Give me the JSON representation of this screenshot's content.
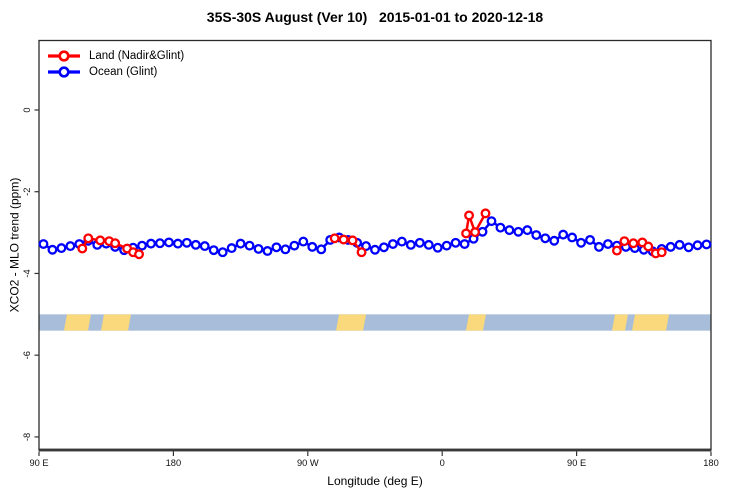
{
  "figure": {
    "title": "35S-30S August (Ver 10)   2015-01-01 to 2020-12-18"
  },
  "legend": {
    "items": [
      {
        "label": "Land (Nadir&Glint)",
        "color": "#ff0000"
      },
      {
        "label": "Ocean (Glint)",
        "color": "#0000ff"
      }
    ]
  },
  "axes": {
    "x": {
      "label": "Longitude (deg E)",
      "ticks": [
        {
          "value": 90,
          "label": "90 E"
        },
        {
          "value": 180,
          "label": "180"
        },
        {
          "value": 270,
          "label": "90 W"
        },
        {
          "value": 360,
          "label": "0"
        },
        {
          "value": 450,
          "label": "90 E"
        },
        {
          "value": 540,
          "label": "180"
        }
      ]
    },
    "y": {
      "label": "XCO2 - MLO trend (ppm)",
      "ticks": [
        {
          "value": 0,
          "label": "0"
        },
        {
          "value": -2,
          "label": "-2"
        },
        {
          "value": -4,
          "label": "-4"
        },
        {
          "value": -6,
          "label": "-6"
        },
        {
          "value": -8,
          "label": "-8"
        }
      ]
    }
  },
  "chart_data": {
    "type": "line",
    "title": "35S-30S August (Ver 10)   2015-01-01 to 2020-12-18",
    "xlabel": "Longitude (deg E)",
    "ylabel": "XCO2 - MLO trend (ppm)",
    "xlim": [
      90,
      540
    ],
    "ylim": [
      -8.32,
      1.7
    ],
    "marker": "open-circle",
    "series": [
      {
        "name": "Ocean (Glint)",
        "color": "#0000ff",
        "x": [
          93,
          99,
          105,
          111,
          117,
          123,
          129,
          135,
          141,
          147,
          153,
          159,
          165,
          171,
          177,
          183,
          189,
          195,
          201,
          207,
          213,
          219,
          225,
          231,
          237,
          243,
          249,
          255,
          261,
          267,
          273,
          279,
          285,
          291,
          297,
          303,
          309,
          315,
          321,
          327,
          333,
          339,
          345,
          351,
          357,
          363,
          369,
          375,
          381,
          387,
          393,
          399,
          405,
          411,
          417,
          423,
          429,
          435,
          441,
          447,
          453,
          459,
          465,
          471,
          477,
          483,
          489,
          495,
          501,
          507,
          513,
          519,
          525,
          531,
          537
        ],
        "y": [
          -3.28,
          -3.42,
          -3.38,
          -3.33,
          -3.28,
          -3.2,
          -3.3,
          -3.27,
          -3.35,
          -3.43,
          -3.37,
          -3.32,
          -3.27,
          -3.26,
          -3.24,
          -3.27,
          -3.25,
          -3.3,
          -3.33,
          -3.43,
          -3.48,
          -3.38,
          -3.27,
          -3.32,
          -3.4,
          -3.45,
          -3.36,
          -3.41,
          -3.32,
          -3.22,
          -3.35,
          -3.41,
          -3.18,
          -3.12,
          -3.18,
          -3.25,
          -3.33,
          -3.42,
          -3.36,
          -3.28,
          -3.22,
          -3.3,
          -3.25,
          -3.3,
          -3.37,
          -3.32,
          -3.25,
          -3.28,
          -3.15,
          -2.98,
          -2.72,
          -2.88,
          -2.94,
          -2.98,
          -2.94,
          -3.06,
          -3.14,
          -3.2,
          -3.05,
          -3.12,
          -3.25,
          -3.18,
          -3.35,
          -3.28,
          -3.32,
          -3.35,
          -3.38,
          -3.42,
          -3.46,
          -3.4,
          -3.35,
          -3.3,
          -3.36,
          -3.31,
          -3.29
        ]
      },
      {
        "name": "Land (Nadir&Glint)",
        "color": "#ff0000",
        "segments": [
          [
            [
              119,
              -3.39
            ],
            [
              123,
              -3.14
            ],
            [
              131,
              -3.19
            ],
            [
              137,
              -3.21
            ],
            [
              141,
              -3.26
            ],
            [
              149,
              -3.39
            ],
            [
              153,
              -3.48
            ],
            [
              157,
              -3.53
            ]
          ],
          [
            [
              288,
              -3.14
            ],
            [
              294,
              -3.17
            ],
            [
              300,
              -3.19
            ],
            [
              306,
              -3.48
            ]
          ],
          [
            [
              376,
              -3.02
            ],
            [
              378,
              -2.58
            ],
            [
              382,
              -2.99
            ],
            [
              389,
              -2.53
            ]
          ],
          [
            [
              477,
              -3.44
            ],
            [
              482,
              -3.21
            ],
            [
              488,
              -3.26
            ],
            [
              494,
              -3.24
            ],
            [
              498,
              -3.34
            ],
            [
              503,
              -3.51
            ],
            [
              507,
              -3.48
            ]
          ]
        ]
      }
    ],
    "map_band": {
      "y_top": -5.0,
      "y_bottom": -5.4,
      "ocean_color": "#a8bdd9",
      "land_color": "#fad87c",
      "land_patches": [
        [
          106.7,
          124.8
        ],
        [
          131.5,
          151.6
        ],
        [
          288.9,
          309.0
        ],
        [
          375.9,
          389.3
        ],
        [
          473.7,
          484.4
        ],
        [
          487.1,
          511.9
        ]
      ]
    },
    "legend_position": "top-left",
    "grid": false
  }
}
